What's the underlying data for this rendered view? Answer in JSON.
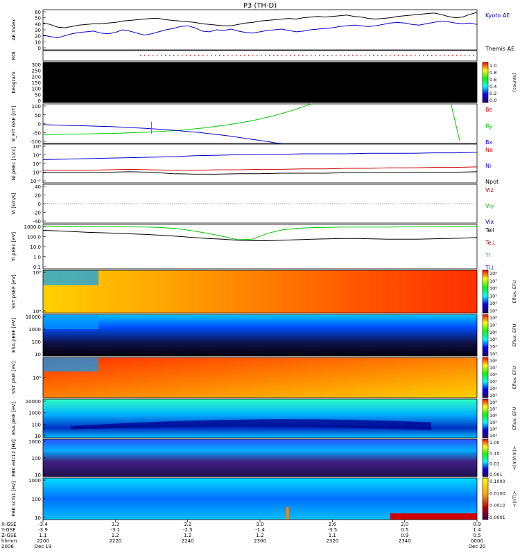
{
  "title": "P3 (TH-D)",
  "colors": {
    "blue": "#0000c8",
    "green": "#00c800",
    "red": "#c80000",
    "black": "#000000"
  },
  "chart_data": [
    {
      "type": "line",
      "panel": "ae",
      "ylabel": "AE Index",
      "ylim": [
        0,
        60
      ],
      "yticks": [
        "60",
        "50",
        "40",
        "30",
        "20",
        "10",
        "0"
      ],
      "series": [
        {
          "name": "Kyoto AE",
          "color": "blue",
          "values": [
            22,
            20,
            18,
            21,
            24,
            26,
            27,
            28,
            25,
            24,
            26,
            30,
            28,
            25,
            22,
            24,
            27,
            30,
            32,
            35,
            36,
            33,
            28,
            27,
            30,
            29,
            31,
            28,
            26,
            25,
            27,
            29,
            30,
            31,
            29,
            27,
            28,
            30,
            31,
            32,
            33,
            35,
            36,
            37,
            36,
            35,
            36,
            38,
            40,
            41,
            40,
            38,
            37,
            39,
            41,
            43,
            42,
            40,
            39,
            40,
            38
          ]
        },
        {
          "name": "Themis AE",
          "color": "black",
          "values": [
            40,
            38,
            34,
            33,
            35,
            37,
            38,
            39,
            39,
            40,
            41,
            43,
            44,
            45,
            46,
            47,
            47,
            45,
            44,
            43,
            42,
            41,
            39,
            38,
            37,
            36,
            36,
            38,
            40,
            41,
            43,
            44,
            45,
            46,
            47,
            46,
            48,
            49,
            50,
            49,
            50,
            51,
            52,
            50,
            49,
            47,
            46,
            47,
            48,
            50,
            51,
            52,
            53,
            54,
            55,
            53,
            50,
            48,
            49,
            53,
            56
          ]
        }
      ]
    },
    {
      "type": "heatmap",
      "panel": "roi",
      "ylabel": "ROI",
      "values": []
    },
    {
      "type": "heatmap",
      "panel": "keogram",
      "ylabel": "Keogram",
      "ylim": [
        0,
        300
      ],
      "yticks": [
        "300",
        "250",
        "200",
        "150",
        "100",
        "50",
        "0"
      ],
      "colorbar": {
        "label": "[counts]",
        "ticks": [
          "1.0",
          "0.8",
          "0.6",
          "0.4",
          "0.2",
          "0.0"
        ]
      }
    },
    {
      "type": "line",
      "panel": "bfield",
      "ylabel": "B_FIT GSE [nT]",
      "ylim": [
        -100,
        100
      ],
      "yticks": [
        "100",
        "50",
        "0",
        "-50",
        "-100"
      ],
      "series": [
        {
          "name": "Bz",
          "color": "red",
          "values": []
        },
        {
          "name": "By",
          "color": "green",
          "values": [
            -55,
            -55,
            -54,
            -54,
            -53,
            -53,
            -53,
            -52,
            -52,
            -51,
            -50,
            -50,
            -49,
            -48,
            -47,
            -46,
            -45,
            -44,
            -43,
            -41,
            -40,
            -38,
            -36,
            -34,
            -32,
            -29,
            -26,
            -23,
            -20,
            -16,
            -12,
            -8,
            -4,
            1,
            6,
            11,
            17,
            23,
            30,
            37,
            45,
            53,
            62,
            71,
            81,
            92,
            100
          ]
        },
        {
          "name": "Bx",
          "color": "blue",
          "values": [
            -5,
            -6,
            -7,
            -8,
            -9,
            -10,
            -11,
            -12,
            -13,
            -14,
            -15,
            -17,
            -18,
            -20,
            -22,
            -24,
            -26,
            -28,
            -30,
            -33,
            -36,
            -39,
            -42,
            -45,
            -49,
            -53,
            -57,
            -61,
            -66,
            -71,
            -76,
            -81,
            -86,
            -91,
            -97,
            -100
          ]
        }
      ]
    },
    {
      "type": "line",
      "panel": "density",
      "ylabel": "Ni pEEc [1/cc]",
      "yticks": [
        "10⁶",
        "10⁴",
        "10²",
        "10⁰",
        "10⁻²"
      ],
      "series": [
        {
          "name": "Ne",
          "color": "red",
          "values": [
            0.6,
            0.6,
            0.6,
            0.7,
            0.8,
            0.7,
            0.6,
            0.6,
            0.7,
            0.7,
            0.8,
            0.8,
            0.9,
            0.9,
            1.0,
            1.0,
            1.1,
            1.1,
            1.2,
            1.2,
            1.3
          ]
        },
        {
          "name": "Ni",
          "color": "blue",
          "values": [
            2.8,
            2.9,
            3.0,
            3.1,
            3.2,
            3.3,
            3.4,
            3.6,
            3.7,
            3.8,
            3.9,
            3.9,
            4.0,
            4.0,
            4.0,
            4.1,
            4.1,
            4.1,
            4.2,
            4.2,
            4.3
          ]
        },
        {
          "name": "Npot",
          "color": "black",
          "values": [
            0.1,
            0.1,
            0.1,
            0.2,
            0.3,
            0.2,
            -0.1,
            -0.2,
            -0.2,
            -0.1,
            -0.1,
            0.0,
            0.0,
            0.0,
            0.1,
            0.1,
            0.1,
            0.2,
            0.2,
            0.2,
            0.3
          ]
        }
      ]
    },
    {
      "type": "line",
      "panel": "velocity",
      "ylabel": "Vi [km/s]",
      "ylim": [
        -50,
        50
      ],
      "yticks": [
        "40",
        "20",
        "0",
        "-20",
        "-40"
      ],
      "series": [
        {
          "name": "Viz",
          "color": "red",
          "values": []
        },
        {
          "name": "Viy",
          "color": "green",
          "values": []
        },
        {
          "name": "Vix",
          "color": "blue",
          "values": []
        }
      ]
    },
    {
      "type": "line",
      "panel": "temperature",
      "ylabel": "Ti pEEc [eV]",
      "yticks": [
        "1000.0",
        "100.0",
        "10.0",
        "1.0",
        "0.1"
      ],
      "series": [
        {
          "name": "Tell",
          "color": "black",
          "values": [
            800,
            700,
            600,
            500,
            450,
            400,
            350,
            300,
            250,
            200,
            150,
            120,
            100,
            80,
            70,
            70,
            80,
            90,
            100,
            110,
            120,
            120,
            110,
            100,
            100,
            100,
            110,
            120,
            130,
            150
          ]
        },
        {
          "name": "Te⊥",
          "color": "red",
          "values": []
        },
        {
          "name": "Ti",
          "color": "green",
          "values": [
            2200,
            2100,
            2000,
            2000,
            1900,
            1900,
            1800,
            1700,
            1500,
            1200,
            700,
            400,
            200,
            90,
            100,
            400,
            900,
            1300,
            1500,
            1600,
            1700,
            1700,
            1700,
            1700,
            1800,
            1800,
            1800,
            1900,
            1900,
            2000
          ]
        },
        {
          "name": "Ti⊥",
          "color": "blue",
          "values": []
        }
      ]
    },
    {
      "type": "heatmap",
      "panel": "sst_e",
      "ylabel": "SST pSEF [eV]",
      "yticks": [
        "10⁵",
        "10⁴"
      ],
      "colorbar": {
        "label": "Eflux, EFU",
        "ticks": [
          "10⁸",
          "10⁷",
          "10⁶",
          "10⁵",
          "10⁴",
          "10³"
        ]
      }
    },
    {
      "type": "heatmap",
      "panel": "esa_e",
      "ylabel": "ESA pEEF [eV]",
      "yticks": [
        "10000",
        "1000",
        "100",
        "10"
      ],
      "colorbar": {
        "label": "Eflux, EFU",
        "ticks": [
          "10⁸",
          "10⁷",
          "10⁶",
          "10⁵",
          "10⁴",
          "10³"
        ]
      }
    },
    {
      "type": "heatmap",
      "panel": "sst_i",
      "ylabel": "SST pSIF [eV]",
      "yticks": [
        "10⁵"
      ],
      "colorbar": {
        "label": "Eflux, EFU",
        "ticks": [
          "10⁸",
          "10⁷",
          "10⁶",
          "10⁵",
          "10⁴",
          "10³"
        ]
      }
    },
    {
      "type": "heatmap",
      "panel": "esa_i",
      "ylabel": "ESA pEIF [eV]",
      "yticks": [
        "10000",
        "1000",
        "100",
        "10"
      ],
      "colorbar": {
        "label": "Eflux, EFU",
        "ticks": [
          "10⁸",
          "10⁷",
          "10⁶",
          "10⁵",
          "10⁴",
          "10³"
        ]
      }
    },
    {
      "type": "heatmap",
      "panel": "fbk_e",
      "ylabel": "FBK edc12 [Hz]",
      "yticks": [
        "1000",
        "100",
        "10"
      ],
      "colorbar": {
        "label": "<|mV/m|>",
        "ticks": [
          "1.00",
          "0.10",
          "0.01",
          "0.001"
        ]
      }
    },
    {
      "type": "heatmap",
      "panel": "fbk_b",
      "ylabel": "FBK scm1 [Hz]",
      "yticks": [
        "1000",
        "100",
        "10"
      ],
      "colorbar": {
        "label": "<|nT|>",
        "ticks": [
          "0.1000",
          "0.0100",
          "0.0010",
          "0.0001"
        ]
      }
    }
  ],
  "xaxis": {
    "row_labels": [
      "X-GSE",
      "Y-GSE",
      "Z-GSE",
      "hhmm",
      "2006"
    ],
    "columns": [
      {
        "x": "-3.4",
        "y": "-3.9",
        "z": "1.1",
        "time": "2200",
        "date": "Dec 19"
      },
      {
        "x": "3.3",
        "y": "-3.1",
        "z": "1.2",
        "time": "2220",
        "date": ""
      },
      {
        "x": "3.2",
        "y": "-2.3",
        "z": "1.2",
        "time": "2240",
        "date": ""
      },
      {
        "x": "3.0",
        "y": "-1.4",
        "z": "1.2",
        "time": "2300",
        "date": ""
      },
      {
        "x": "2.6",
        "y": "-3.5",
        "z": "1.1",
        "time": "2320",
        "date": ""
      },
      {
        "x": "2.0",
        "y": "0.5",
        "z": "0.9",
        "time": "2340",
        "date": ""
      },
      {
        "x": "0.9",
        "y": "1.4",
        "z": "0.5",
        "time": "0000",
        "date": "Dec 20"
      }
    ]
  }
}
